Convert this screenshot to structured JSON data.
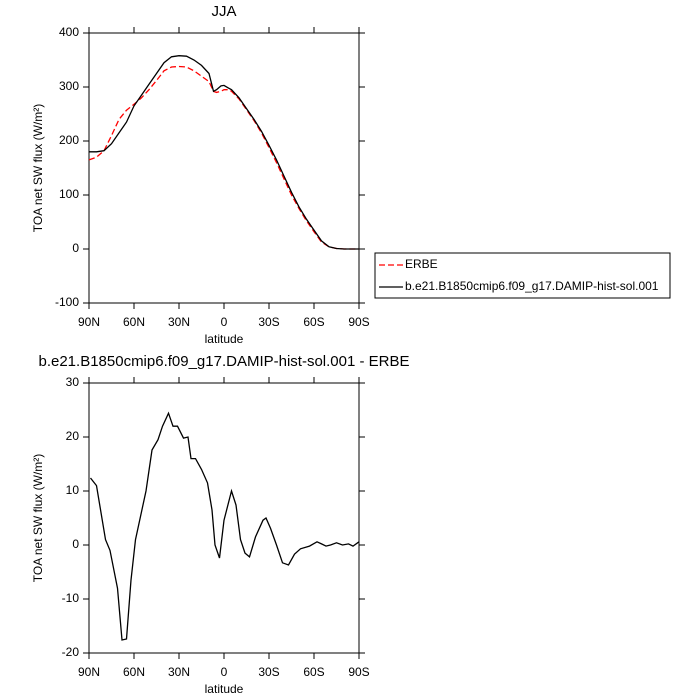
{
  "chart_data": [
    {
      "type": "line",
      "title": "JJA",
      "xlabel": "latitude",
      "ylabel": "TOA net SW flux (W/m²)",
      "x": [
        90,
        85,
        80,
        75,
        70,
        65,
        60,
        55,
        50,
        45,
        40,
        35,
        30,
        25,
        20,
        15,
        10,
        7,
        5,
        2,
        0,
        -3,
        -5,
        -10,
        -15,
        -20,
        -25,
        -30,
        -35,
        -40,
        -45,
        -50,
        -55,
        -60,
        -65,
        -70,
        -75,
        -80,
        -85,
        -90
      ],
      "series": [
        {
          "name": "ERBE",
          "color": "#ff0000",
          "dashed": true,
          "values": [
            165,
            170,
            182,
            210,
            240,
            257,
            268,
            280,
            295,
            312,
            330,
            337,
            338,
            337,
            330,
            320,
            310,
            292,
            290,
            292,
            295,
            295,
            292,
            278,
            258,
            238,
            215,
            188,
            160,
            130,
            100,
            75,
            52,
            32,
            13,
            4,
            1,
            0,
            0,
            0
          ]
        },
        {
          "name": "b.e21.B1850cmip6.f09_g17.DAMIP-hist-sol.001",
          "color": "#000000",
          "dashed": false,
          "values": [
            180,
            180,
            182,
            195,
            215,
            235,
            265,
            285,
            305,
            325,
            345,
            356,
            358,
            357,
            350,
            340,
            325,
            292,
            295,
            302,
            303,
            298,
            295,
            280,
            260,
            240,
            218,
            192,
            165,
            135,
            105,
            78,
            55,
            35,
            15,
            4,
            1,
            0,
            0,
            0
          ]
        }
      ],
      "xlim": [
        90,
        -90
      ],
      "xticks": [
        {
          "value": 90,
          "label": "90N"
        },
        {
          "value": 60,
          "label": "60N"
        },
        {
          "value": 30,
          "label": "30N"
        },
        0,
        {
          "value": -30,
          "label": "30S"
        },
        {
          "value": -60,
          "label": "60S"
        },
        {
          "value": -90,
          "label": "90S"
        }
      ],
      "ylim": [
        -100,
        400
      ],
      "yticks": [
        -100,
        0,
        100,
        200,
        300,
        400
      ],
      "legend": "outside right"
    },
    {
      "type": "line",
      "title": "b.e21.B1850cmip6.f09_g17.DAMIP-hist-sol.001 - ERBE",
      "xlabel": "latitude",
      "ylabel": "TOA net SW flux (W/m²)",
      "x": [
        89,
        85,
        79,
        76,
        71,
        68,
        65,
        62,
        59,
        52,
        48,
        44,
        41,
        37,
        34,
        31,
        27,
        24,
        22,
        19,
        15,
        11,
        8,
        6,
        3,
        0,
        -5,
        -8,
        -11,
        -14,
        -17,
        -21,
        -26,
        -28,
        -31,
        -35,
        -39,
        -43,
        -47,
        -51,
        -57,
        -62,
        -65,
        -68,
        -71,
        -75,
        -79,
        -83,
        -86,
        -90
      ],
      "series": [
        {
          "name": "b.e21.B1850cmip6.f09_g17.DAMIP-hist-sol.001 - ERBE",
          "color": "#000000",
          "dashed": false,
          "values": [
            12.4,
            11,
            1,
            -1,
            -8,
            -17.6,
            -17.4,
            -6.5,
            1,
            10,
            17.6,
            19.5,
            22,
            24.4,
            22,
            22,
            19.8,
            20,
            16,
            16,
            14,
            11.5,
            6.5,
            0,
            -2.4,
            4.6,
            10,
            7.4,
            1,
            -1.5,
            -2.2,
            1.5,
            4.6,
            5,
            3.1,
            0,
            -3.3,
            -3.7,
            -1.7,
            -0.7,
            -0.2,
            0.6,
            0.2,
            -0.2,
            0,
            0.4,
            0,
            0.2,
            -0.2,
            0.6
          ]
        }
      ],
      "xlim": [
        90,
        -90
      ],
      "xticks": [
        {
          "value": 90,
          "label": "90N"
        },
        {
          "value": 60,
          "label": "60N"
        },
        {
          "value": 30,
          "label": "30N"
        },
        0,
        {
          "value": -30,
          "label": "30S"
        },
        {
          "value": -60,
          "label": "60S"
        },
        {
          "value": -90,
          "label": "90S"
        }
      ],
      "ylim": [
        -20,
        30
      ],
      "yticks": [
        -20,
        -10,
        0,
        10,
        20,
        30
      ]
    }
  ]
}
